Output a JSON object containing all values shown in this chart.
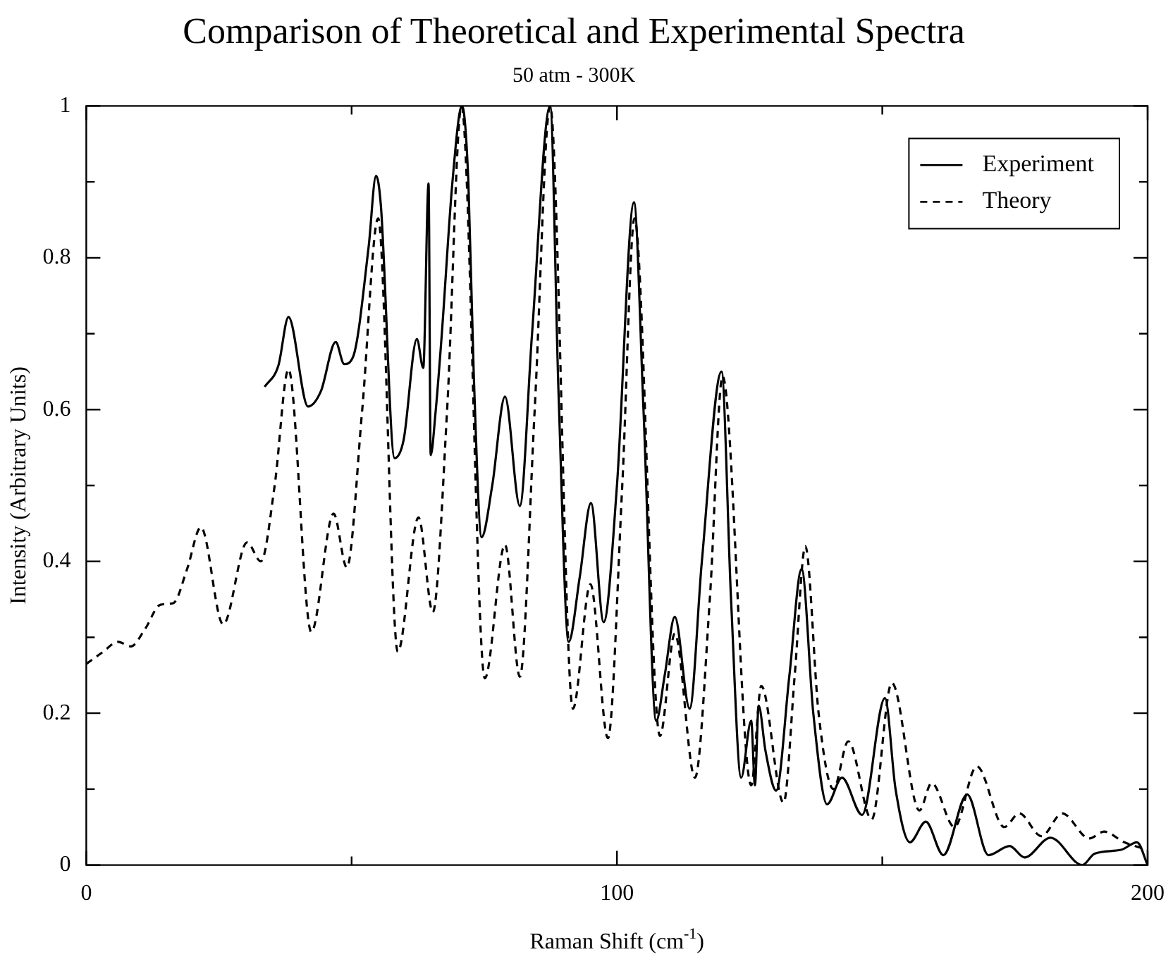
{
  "chart_data": {
    "type": "line",
    "title": "Comparison of Theoretical and Experimental Spectra",
    "subtitle": "50 atm - 300K",
    "xlabel": "Raman Shift (cm$^{-1}$)",
    "ylabel": "Intensity (Arbitrary Units)",
    "xlim": [
      0,
      200
    ],
    "xticks": [
      0,
      {
        "value": 50,
        "label": null
      },
      100,
      {
        "value": 150,
        "label": null
      },
      200
    ],
    "ylim": [
      0,
      1
    ],
    "yticks": [
      0,
      {
        "value": 0.1,
        "label": null
      },
      0.2,
      {
        "value": 0.3,
        "label": null
      },
      0.4,
      {
        "value": 0.5,
        "label": null
      },
      0.6,
      {
        "value": 0.7,
        "label": null
      },
      0.8,
      {
        "value": 0.9,
        "label": null
      },
      1
    ],
    "grid": false,
    "legend": "top right",
    "marker": "none",
    "series": [
      {
        "name": "Experiment",
        "color": "#000000",
        "line_style": "solid",
        "x": [
          33.6,
          36.2,
          38.1,
          41.8,
          44.2,
          47,
          48.6,
          50.3,
          53.2,
          54.6,
          55.5,
          58.1,
          59.8,
          62.3,
          63.5,
          64.5,
          64.9,
          65.8,
          67,
          69,
          70.8,
          72,
          73,
          74.5,
          76.5,
          78.9,
          81.7,
          84,
          87.4,
          89,
          90.9,
          93,
          95.1,
          97.5,
          100,
          103.2,
          105,
          107.4,
          109,
          110.9,
          113.7,
          116,
          119.7,
          121.5,
          123.4,
          125.3,
          126,
          126.7,
          128,
          130,
          132.5,
          134.8,
          137,
          139.6,
          142.4,
          146.2,
          150.5,
          152.5,
          155.2,
          158.2,
          161.5,
          166,
          170,
          174,
          176.8,
          181.7,
          187.7,
          190,
          195,
          198,
          200
        ],
        "values": [
          0.63,
          0.658,
          0.722,
          0.604,
          0.624,
          0.689,
          0.66,
          0.67,
          0.814,
          0.908,
          0.87,
          0.536,
          0.56,
          0.693,
          0.655,
          0.898,
          0.54,
          0.595,
          0.7,
          0.9,
          1.0,
          0.9,
          0.65,
          0.432,
          0.5,
          0.617,
          0.473,
          0.7,
          1.0,
          0.62,
          0.294,
          0.38,
          0.477,
          0.32,
          0.5,
          0.873,
          0.6,
          0.19,
          0.25,
          0.327,
          0.206,
          0.4,
          0.65,
          0.35,
          0.115,
          0.19,
          0.105,
          0.21,
          0.15,
          0.098,
          0.25,
          0.39,
          0.2,
          0.08,
          0.115,
          0.066,
          0.22,
          0.1,
          0.03,
          0.057,
          0.013,
          0.093,
          0.013,
          0.025,
          0.01,
          0.036,
          0.0,
          0.015,
          0.02,
          0.03,
          0.0
        ]
      },
      {
        "name": "Theory",
        "color": "#000000",
        "line_style": "dashed",
        "x": [
          0,
          3,
          6,
          8.4,
          11,
          14,
          16.4,
          19,
          21.6,
          25.8,
          30.3,
          32.9,
          35.5,
          38.1,
          42.4,
          46.6,
          49.1,
          52,
          55,
          58.7,
          62.6,
          65.3,
          68,
          70.7,
          75.1,
          78.9,
          81.7,
          84.5,
          87.4,
          91.7,
          95,
          98.3,
          101,
          103.3,
          108.1,
          110.9,
          114.7,
          117.5,
          119.9,
          125.3,
          127.2,
          131.4,
          133.5,
          135.5,
          138,
          140.8,
          143.6,
          148,
          151.8,
          157,
          159.3,
          163.6,
          167.8,
          173,
          175.8,
          180,
          183.9,
          189,
          191.8,
          195.6,
          200
        ],
        "values": [
          0.265,
          0.28,
          0.294,
          0.288,
          0.31,
          0.343,
          0.345,
          0.39,
          0.445,
          0.317,
          0.425,
          0.4,
          0.5,
          0.653,
          0.307,
          0.463,
          0.392,
          0.6,
          0.852,
          0.281,
          0.458,
          0.333,
          0.6,
          1.0,
          0.246,
          0.422,
          0.248,
          0.6,
          1.0,
          0.206,
          0.37,
          0.167,
          0.5,
          0.852,
          0.17,
          0.305,
          0.115,
          0.35,
          0.644,
          0.105,
          0.236,
          0.082,
          0.25,
          0.42,
          0.2,
          0.1,
          0.163,
          0.06,
          0.24,
          0.072,
          0.108,
          0.05,
          0.13,
          0.05,
          0.068,
          0.038,
          0.068,
          0.035,
          0.044,
          0.03,
          0.02
        ]
      }
    ]
  }
}
